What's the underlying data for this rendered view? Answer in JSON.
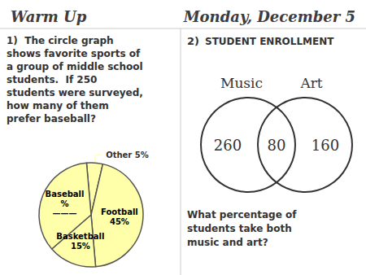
{
  "chart_data": {
    "type": "pie",
    "title": "Warm Up",
    "subtitle": "Monday, December 5",
    "categories": [
      "Other",
      "Football",
      "Basketball",
      "Baseball"
    ],
    "values": [
      5,
      45,
      15,
      35
    ],
    "value_labels": [
      "Other 5%",
      "Football\n45%",
      "Basketball\n15%",
      "Baseball\n%\n———"
    ],
    "color": "#FFFFAA",
    "annotations": [
      "1)  The circle graph\nshows favorite sports of\na group of middle school\nstudents.  If 250\nstudents were surveyed,\nhow many of them\nprefer baseball?",
      "2)",
      "STUDENT ENROLLMENT",
      "Music",
      "Art",
      "260",
      "80",
      "160",
      "What percentage of\nstudents take both\nmusic and art?"
    ]
  }
}
